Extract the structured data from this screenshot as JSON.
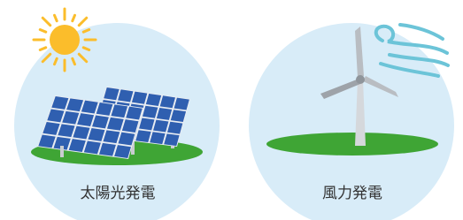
{
  "items": [
    {
      "label": "太陽光発電"
    },
    {
      "label": "風力発電"
    }
  ]
}
